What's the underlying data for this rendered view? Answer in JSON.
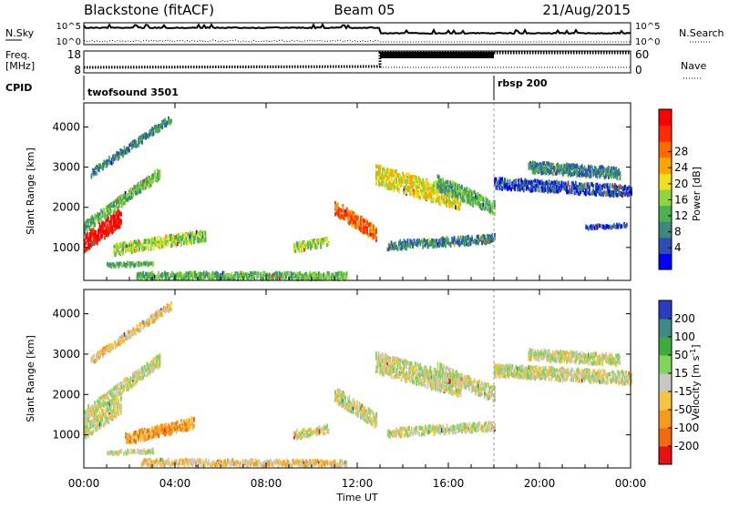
{
  "header": {
    "radar": "Blackstone (fitACF)",
    "beam": "Beam 05",
    "date": "21/Aug/2015"
  },
  "noise_panel": {
    "left_label": "N.Sky",
    "right_label": "N.Search",
    "left_ticks": [
      "10^5",
      "10^0"
    ],
    "right_ticks": [
      "10^5",
      "10^0"
    ]
  },
  "freq_panel": {
    "left_label_1": "Freq.",
    "left_label_2": "[MHz]",
    "right_label": "Nave",
    "left_ticks": [
      "18",
      "8"
    ],
    "right_ticks": [
      "60",
      "0"
    ]
  },
  "cpid_panel": {
    "label": "CPID",
    "modes": [
      {
        "name": "twofsound 3501",
        "start_hour": 0
      },
      {
        "name": "rbsp 200",
        "start_hour": 18
      }
    ]
  },
  "chart_data": [
    {
      "type": "heatmap",
      "panel": "power",
      "ylabel": "Slant Range [km]",
      "xlabel": "Time UT",
      "x_ticks": [
        "00:00",
        "04:00",
        "08:00",
        "12:00",
        "16:00",
        "20:00",
        "00:00"
      ],
      "x_range_hours": [
        0,
        24
      ],
      "ylim_km": [
        180,
        4600
      ],
      "y_ticks": [
        1000,
        2000,
        3000,
        4000
      ],
      "colorbar": {
        "label": "Power [dB]",
        "ticks": [
          4,
          8,
          12,
          16,
          20,
          24,
          28
        ],
        "colors": [
          "#0000ff",
          "#2d4fb4",
          "#3d8a7a",
          "#4caf50",
          "#8fd63a",
          "#f0e020",
          "#ffa500",
          "#ff6a00",
          "#ff2a00",
          "#ff0000"
        ]
      },
      "bands": [
        {
          "t0": 0.0,
          "r0": 1500,
          "t1": 3.3,
          "r1": 2850,
          "width": 260,
          "level": 3
        },
        {
          "t0": 0.0,
          "r0": 1100,
          "t1": 1.6,
          "r1": 1750,
          "width": 420,
          "level": 9
        },
        {
          "t0": 0.3,
          "r0": 2850,
          "t1": 3.8,
          "r1": 4200,
          "width": 180,
          "level": 2
        },
        {
          "t0": 1.3,
          "r0": 950,
          "t1": 5.3,
          "r1": 1300,
          "width": 260,
          "level": 4
        },
        {
          "t0": 1.0,
          "r0": 560,
          "t1": 3.0,
          "r1": 600,
          "width": 80,
          "level": 3
        },
        {
          "t0": 2.3,
          "r0": 300,
          "t1": 11.5,
          "r1": 290,
          "width": 160,
          "level": 3
        },
        {
          "t0": 9.2,
          "r0": 1000,
          "t1": 10.7,
          "r1": 1150,
          "width": 200,
          "level": 4
        },
        {
          "t0": 11.0,
          "r0": 2000,
          "t1": 12.8,
          "r1": 1350,
          "width": 350,
          "level": 7
        },
        {
          "t0": 12.8,
          "r0": 2800,
          "t1": 16.5,
          "r1": 2200,
          "width": 500,
          "level": 5
        },
        {
          "t0": 15.5,
          "r0": 2600,
          "t1": 18.0,
          "r1": 2000,
          "width": 350,
          "level": 3
        },
        {
          "t0": 13.3,
          "r0": 1050,
          "t1": 18.0,
          "r1": 1220,
          "width": 200,
          "level": 2
        },
        {
          "t0": 18.0,
          "r0": 2600,
          "t1": 24.0,
          "r1": 2400,
          "width": 260,
          "level": 1
        },
        {
          "t0": 19.5,
          "r0": 3000,
          "t1": 23.5,
          "r1": 2850,
          "width": 260,
          "level": 2
        },
        {
          "t0": 22.0,
          "r0": 1500,
          "t1": 23.8,
          "r1": 1550,
          "width": 80,
          "level": 1
        }
      ]
    },
    {
      "type": "heatmap",
      "panel": "velocity",
      "ylabel": "Slant Range [km]",
      "xlabel": "Time UT",
      "x_ticks": [
        "00:00",
        "04:00",
        "08:00",
        "12:00",
        "16:00",
        "20:00",
        "00:00"
      ],
      "x_range_hours": [
        0,
        24
      ],
      "ylim_km": [
        180,
        4600
      ],
      "y_ticks": [
        1000,
        2000,
        3000,
        4000
      ],
      "colorbar": {
        "label": "Velocity [m s^-1]",
        "ticks": [
          200,
          100,
          50,
          15,
          -15,
          -50,
          -100,
          -200
        ],
        "colors": [
          "#2a3cc0",
          "#3f8a84",
          "#3daa3d",
          "#7fd45a",
          "#c8c8c0",
          "#f5c242",
          "#f59a1a",
          "#f06a10",
          "#e81010"
        ]
      },
      "bands": [
        {
          "t0": 0.0,
          "r0": 1500,
          "t1": 3.3,
          "r1": 2850,
          "width": 300,
          "level": 4
        },
        {
          "t0": 0.0,
          "r0": 1100,
          "t1": 1.6,
          "r1": 1750,
          "width": 420,
          "level": 4
        },
        {
          "t0": 0.3,
          "r0": 2850,
          "t1": 3.8,
          "r1": 4200,
          "width": 180,
          "level": 5
        },
        {
          "t0": 1.8,
          "r0": 900,
          "t1": 4.8,
          "r1": 1300,
          "width": 260,
          "level": 6
        },
        {
          "t0": 1.0,
          "r0": 560,
          "t1": 3.0,
          "r1": 600,
          "width": 80,
          "level": 4
        },
        {
          "t0": 2.5,
          "r0": 320,
          "t1": 11.5,
          "r1": 290,
          "width": 150,
          "level": 5
        },
        {
          "t0": 9.2,
          "r0": 1000,
          "t1": 10.7,
          "r1": 1150,
          "width": 200,
          "level": 4
        },
        {
          "t0": 11.0,
          "r0": 2000,
          "t1": 12.8,
          "r1": 1350,
          "width": 350,
          "level": 4
        },
        {
          "t0": 12.8,
          "r0": 2800,
          "t1": 16.5,
          "r1": 2200,
          "width": 500,
          "level": 4
        },
        {
          "t0": 15.5,
          "r0": 2600,
          "t1": 18.0,
          "r1": 2000,
          "width": 350,
          "level": 4
        },
        {
          "t0": 13.3,
          "r0": 1050,
          "t1": 18.0,
          "r1": 1220,
          "width": 200,
          "level": 4
        },
        {
          "t0": 18.0,
          "r0": 2600,
          "t1": 24.0,
          "r1": 2400,
          "width": 300,
          "level": 4
        },
        {
          "t0": 19.5,
          "r0": 3000,
          "t1": 23.5,
          "r1": 2850,
          "width": 260,
          "level": 4
        }
      ]
    }
  ]
}
